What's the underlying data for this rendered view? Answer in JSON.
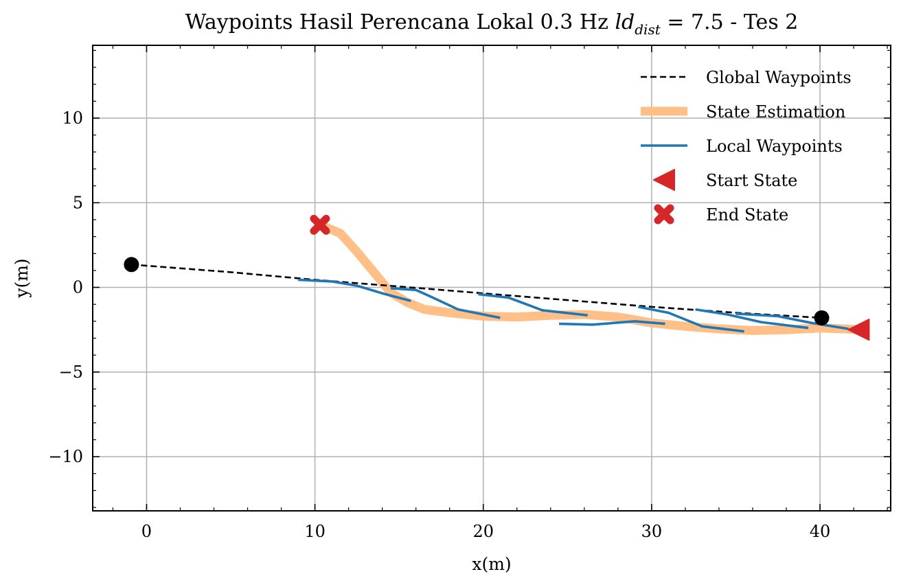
{
  "chart_data": {
    "type": "line",
    "title": "Waypoints Hasil Perencana Lokal 0.3 Hz",
    "title_math": {
      "base": "ld",
      "sub": "dist",
      "rest": " = 7.5 - Tes 2"
    },
    "xlabel": "x(m)",
    "ylabel": "y(m)",
    "xlim": [
      -3.2,
      44.2
    ],
    "ylim": [
      -13.2,
      14.3
    ],
    "xticks": [
      0,
      10,
      20,
      30,
      40
    ],
    "xtick_labels": [
      "0",
      "10",
      "20",
      "30",
      "40"
    ],
    "yticks": [
      -10,
      -5,
      0,
      5,
      10
    ],
    "ytick_labels": [
      "−10",
      "−5",
      "0",
      "5",
      "10"
    ],
    "grid": true,
    "legend_position": "top-right",
    "colors": {
      "global": "#000000",
      "state": "#ffbf86",
      "local": "#1f77b4",
      "marker": "#d62728",
      "endpoints": "#000000"
    },
    "series": [
      {
        "name": "Global Waypoints",
        "style": "dashed",
        "points": [
          [
            -0.9,
            1.35
          ],
          [
            5,
            0.9
          ],
          [
            10,
            0.45
          ],
          [
            15,
            0.05
          ],
          [
            20,
            -0.35
          ],
          [
            25,
            -0.75
          ],
          [
            30,
            -1.15
          ],
          [
            35,
            -1.5
          ],
          [
            40.1,
            -1.8
          ]
        ]
      },
      {
        "name": "State Estimation",
        "style": "thick",
        "points": [
          [
            10.3,
            3.7
          ],
          [
            11.5,
            3.2
          ],
          [
            12.5,
            2.1
          ],
          [
            13.5,
            0.9
          ],
          [
            14.5,
            -0.3
          ],
          [
            15.5,
            -0.9
          ],
          [
            16.5,
            -1.3
          ],
          [
            18,
            -1.5
          ],
          [
            20,
            -1.7
          ],
          [
            22,
            -1.75
          ],
          [
            24,
            -1.65
          ],
          [
            26,
            -1.6
          ],
          [
            28,
            -1.75
          ],
          [
            30,
            -2.1
          ],
          [
            32,
            -2.3
          ],
          [
            34,
            -2.45
          ],
          [
            36,
            -2.55
          ],
          [
            38,
            -2.5
          ],
          [
            40,
            -2.4
          ],
          [
            41.5,
            -2.45
          ],
          [
            42.3,
            -2.5
          ]
        ]
      },
      {
        "name": "Local Waypoints",
        "style": "solid",
        "segments": [
          [
            [
              9,
              0.45
            ],
            [
              11,
              0.35
            ],
            [
              12.5,
              0.1
            ],
            [
              14,
              -0.35
            ],
            [
              15.7,
              -0.8
            ]
          ],
          [
            [
              14.5,
              -0.05
            ],
            [
              16,
              -0.15
            ],
            [
              17,
              -0.6
            ],
            [
              18.5,
              -1.3
            ],
            [
              21,
              -1.8
            ]
          ],
          [
            [
              19.7,
              -0.4
            ],
            [
              21.5,
              -0.6
            ],
            [
              23.5,
              -1.35
            ],
            [
              26.2,
              -1.65
            ]
          ],
          [
            [
              24.5,
              -2.15
            ],
            [
              26.5,
              -2.2
            ],
            [
              29,
              -2.0
            ],
            [
              30.8,
              -2.15
            ]
          ],
          [
            [
              29.2,
              -1.15
            ],
            [
              31,
              -1.5
            ],
            [
              33,
              -2.3
            ],
            [
              35.5,
              -2.6
            ]
          ],
          [
            [
              32.6,
              -1.3
            ],
            [
              34.5,
              -1.6
            ],
            [
              36.5,
              -2.05
            ],
            [
              39.3,
              -2.4
            ]
          ],
          [
            [
              35,
              -1.55
            ],
            [
              37.5,
              -1.7
            ],
            [
              39.5,
              -2.1
            ],
            [
              41.7,
              -2.45
            ]
          ]
        ]
      },
      {
        "name": "Start State",
        "style": "marker-left-triangle",
        "points": [
          [
            42.3,
            -2.5
          ]
        ]
      },
      {
        "name": "End State",
        "style": "marker-x",
        "points": [
          [
            10.3,
            3.7
          ]
        ]
      }
    ],
    "endpoint_markers": [
      [
        -0.9,
        1.35
      ],
      [
        40.1,
        -1.8
      ]
    ],
    "legend": [
      "Global Waypoints",
      "State Estimation",
      "Local Waypoints",
      "Start State",
      "End State"
    ]
  }
}
